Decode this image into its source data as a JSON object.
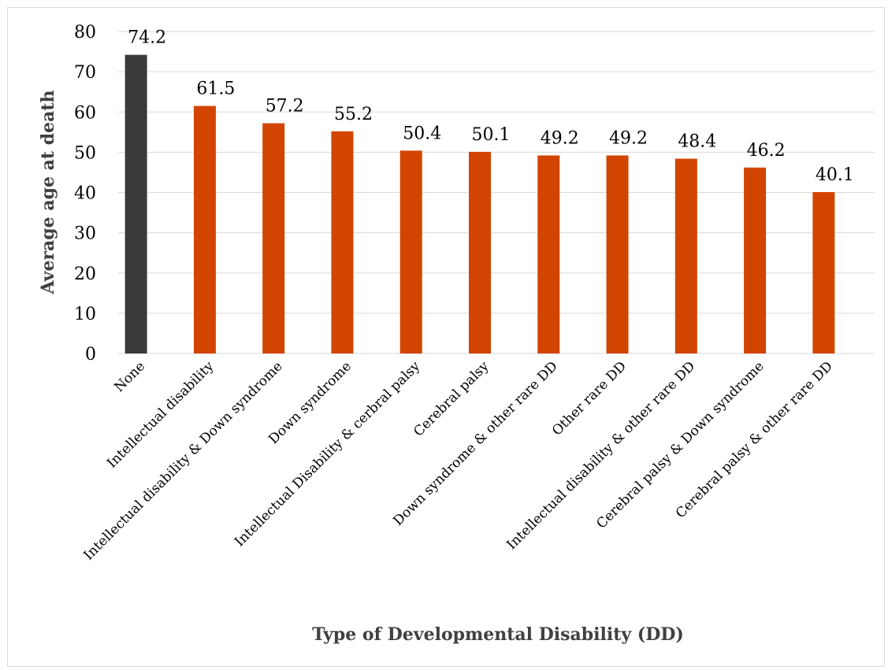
{
  "chart_data": {
    "type": "bar",
    "title": "",
    "xlabel": "Type of Developmental Disability (DD)",
    "ylabel": "Average age at death",
    "ylim": [
      0,
      80
    ],
    "yticks": [
      0,
      10,
      20,
      30,
      40,
      50,
      60,
      70,
      80
    ],
    "grid": true,
    "legend": "none",
    "categories": [
      "None",
      "Intellectual disability",
      "Intellectual disability & Down syndrome",
      "Down syndrome",
      "Intellectual Disability & cerbral palsy",
      "Cerebral palsy",
      "Down syndrome & other rare DD",
      "Other rare DD",
      "Intellectual disability & other rare DD",
      "Cerebral palsy & Down syndrome",
      "Cerebral palsy & other rare DD"
    ],
    "values": [
      74.2,
      61.5,
      57.2,
      55.2,
      50.4,
      50.1,
      49.2,
      49.2,
      48.4,
      46.2,
      40.1
    ],
    "data_labels": [
      "74.2",
      "61.5",
      "57.2",
      "55.2",
      "50.4",
      "50.1",
      "49.2",
      "49.2",
      "48.4",
      "46.2",
      "40.1"
    ],
    "colors": {
      "highlight": "#3b3a38",
      "default": "#d24500",
      "grid": "#d9d9d9"
    },
    "highlight_index": 0
  }
}
